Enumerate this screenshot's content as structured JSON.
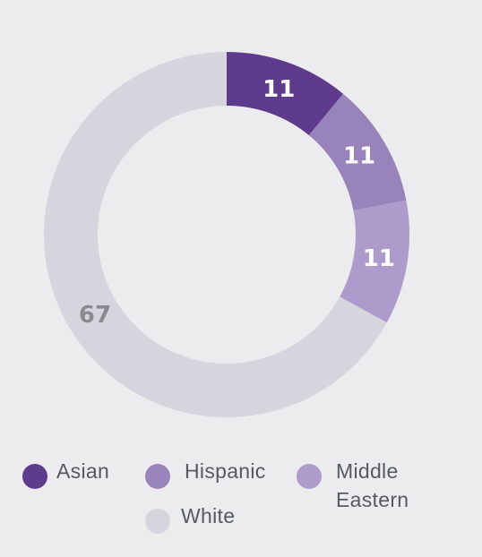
{
  "chart_data": {
    "type": "pie",
    "variant": "donut",
    "title": "",
    "categories": [
      "Asian",
      "Hispanic",
      "Middle Eastern",
      "White"
    ],
    "values": [
      11,
      11,
      11,
      67
    ],
    "data_labels": [
      "11",
      "11",
      "11",
      "67"
    ],
    "colors": [
      "#5e3b8d",
      "#9884bb",
      "#ad9ccb",
      "#d6d5de"
    ],
    "label_colors": [
      "#ffffff",
      "#ffffff",
      "#ffffff",
      "#8a8b8f"
    ],
    "legend": {
      "placement": "bottom",
      "entries": [
        {
          "label": "Asian",
          "color": "#5e3b8d"
        },
        {
          "label": "Hispanic",
          "color": "#9884bb"
        },
        {
          "label": "Middle\nEastern",
          "color": "#ad9ccb"
        },
        {
          "label": "White",
          "color": "#d6d5de"
        }
      ]
    }
  }
}
